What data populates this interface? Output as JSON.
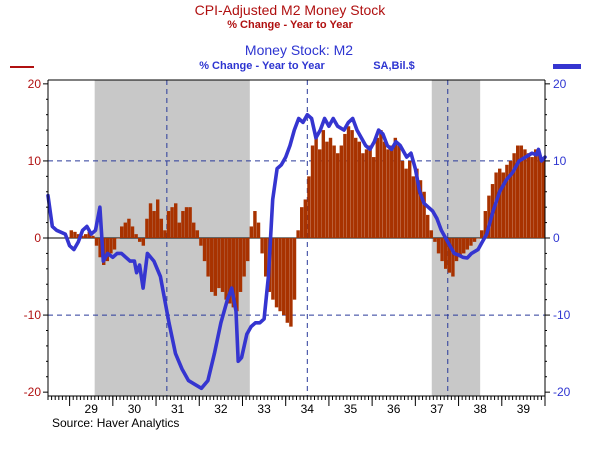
{
  "chart_data": {
    "type": "bar+line",
    "title": "CPI-Adjusted M2 Money Stock",
    "subtitle": "% Change - Year to Year",
    "title2": "Money Stock: M2",
    "subtitle2": "% Change - Year to Year",
    "units2": "SA,Bil.$",
    "source": "Source: Haver Analytics",
    "x_ticks": [
      "29",
      "30",
      "31",
      "32",
      "33",
      "34",
      "35",
      "36",
      "37",
      "38",
      "39"
    ],
    "y_left_ticks": [
      "20",
      "10",
      "0",
      "-10",
      "-20"
    ],
    "y_right_ticks": [
      "20",
      "10",
      "0",
      "-10",
      "-20"
    ],
    "ylim": [
      -20.5,
      20.5
    ],
    "xlim": [
      1928.5,
      1940.0
    ],
    "grid": "dashed blue horizontal at ±10 and dashed vertical at cycle turning points",
    "recessions": [
      [
        1929.58,
        1933.17
      ],
      [
        1937.38,
        1938.5
      ]
    ],
    "vlines": [
      1931.25,
      1934.5,
      1937.75
    ],
    "colors": {
      "bars": "#a83200",
      "line": "#3535d0",
      "recession": "#c8c8c8",
      "left_axis": "#b01010",
      "right_axis": "#2e35d1",
      "grid": "#2a3a9a"
    },
    "series": [
      {
        "name": "CPI-Adjusted M2 Money Stock",
        "kind": "bar",
        "x_start": 1929.0,
        "step": 0.0833,
        "values": [
          1.0,
          0.8,
          0.5,
          0.3,
          0.5,
          0.8,
          0.3,
          -1.0,
          -2.5,
          -3.5,
          -3.0,
          -2.0,
          -1.5,
          0.0,
          1.5,
          2.0,
          2.5,
          1.5,
          0.5,
          -0.5,
          -1.0,
          2.5,
          4.5,
          3.5,
          5.0,
          2.5,
          1.0,
          3.5,
          4.0,
          4.5,
          2.0,
          3.5,
          4.0,
          4.0,
          2.0,
          1.0,
          -1.0,
          -3.0,
          -5.0,
          -7.0,
          -7.5,
          -6.5,
          -7.0,
          -8.0,
          -8.5,
          -9.0,
          -9.5,
          -7.0,
          -5.0,
          -3.0,
          1.5,
          3.5,
          2.0,
          -2.0,
          -5.0,
          -7.0,
          -8.0,
          -9.0,
          -9.5,
          -10.0,
          -11.0,
          -11.5,
          -8.0,
          1.0,
          4.0,
          5.0,
          8.0,
          12.0,
          13.0,
          11.5,
          14.0,
          12.5,
          13.0,
          12.0,
          11.0,
          12.0,
          13.5,
          14.5,
          14.0,
          13.0,
          12.5,
          11.0,
          11.5,
          12.0,
          10.5,
          13.0,
          14.0,
          12.5,
          11.5,
          12.0,
          13.0,
          12.0,
          10.0,
          9.0,
          10.0,
          8.0,
          9.0,
          7.5,
          6.0,
          3.0,
          1.0,
          -0.5,
          -2.0,
          -3.0,
          -4.0,
          -4.5,
          -5.0,
          -3.0,
          -2.5,
          -2.0,
          -1.5,
          -1.0,
          -0.5,
          0.0,
          1.0,
          3.5,
          5.5,
          7.0,
          8.5,
          9.0,
          8.5,
          9.5,
          10.0,
          11.0,
          12.0,
          12.0,
          11.5,
          11.0,
          10.5,
          11.5,
          11.0,
          10.0
        ]
      },
      {
        "name": "Money Stock: M2",
        "kind": "line",
        "points": [
          [
            1928.5,
            5.5
          ],
          [
            1928.6,
            1.5
          ],
          [
            1928.7,
            1.0
          ],
          [
            1928.9,
            0.5
          ],
          [
            1929.0,
            -1.0
          ],
          [
            1929.1,
            -1.5
          ],
          [
            1929.2,
            -0.5
          ],
          [
            1929.3,
            1.0
          ],
          [
            1929.4,
            1.5
          ],
          [
            1929.5,
            0.5
          ],
          [
            1929.6,
            1.0
          ],
          [
            1929.7,
            4.0
          ],
          [
            1929.78,
            -3.0
          ],
          [
            1929.88,
            -2.0
          ],
          [
            1930.0,
            -2.5
          ],
          [
            1930.1,
            -2.0
          ],
          [
            1930.2,
            -2.0
          ],
          [
            1930.3,
            -2.5
          ],
          [
            1930.4,
            -3.0
          ],
          [
            1930.5,
            -3.0
          ],
          [
            1930.55,
            -4.5
          ],
          [
            1930.62,
            -3.5
          ],
          [
            1930.7,
            -6.5
          ],
          [
            1930.8,
            -2.0
          ],
          [
            1930.95,
            -3.0
          ],
          [
            1931.1,
            -5.0
          ],
          [
            1931.2,
            -8.0
          ],
          [
            1931.3,
            -11.0
          ],
          [
            1931.45,
            -15.0
          ],
          [
            1931.6,
            -17.0
          ],
          [
            1931.75,
            -18.5
          ],
          [
            1931.9,
            -19.0
          ],
          [
            1932.05,
            -19.5
          ],
          [
            1932.2,
            -18.5
          ],
          [
            1932.35,
            -15.0
          ],
          [
            1932.5,
            -11.0
          ],
          [
            1932.65,
            -8.0
          ],
          [
            1932.75,
            -6.5
          ],
          [
            1932.85,
            -9.5
          ],
          [
            1932.9,
            -16.0
          ],
          [
            1932.98,
            -15.5
          ],
          [
            1933.1,
            -12.5
          ],
          [
            1933.2,
            -11.5
          ],
          [
            1933.3,
            -11.0
          ],
          [
            1933.4,
            -11.0
          ],
          [
            1933.5,
            -10.5
          ],
          [
            1933.6,
            -5.0
          ],
          [
            1933.7,
            5.0
          ],
          [
            1933.8,
            9.0
          ],
          [
            1933.9,
            9.5
          ],
          [
            1934.0,
            10.5
          ],
          [
            1934.1,
            12.0
          ],
          [
            1934.2,
            14.0
          ],
          [
            1934.3,
            15.5
          ],
          [
            1934.4,
            15.0
          ],
          [
            1934.5,
            16.0
          ],
          [
            1934.6,
            15.5
          ],
          [
            1934.7,
            13.0
          ],
          [
            1934.8,
            14.0
          ],
          [
            1934.9,
            15.5
          ],
          [
            1935.0,
            14.5
          ],
          [
            1935.1,
            15.5
          ],
          [
            1935.2,
            14.5
          ],
          [
            1935.35,
            14.0
          ],
          [
            1935.45,
            15.0
          ],
          [
            1935.55,
            15.5
          ],
          [
            1935.65,
            14.0
          ],
          [
            1935.75,
            13.0
          ],
          [
            1935.85,
            12.0
          ],
          [
            1935.95,
            11.5
          ],
          [
            1936.05,
            12.5
          ],
          [
            1936.15,
            14.0
          ],
          [
            1936.25,
            13.5
          ],
          [
            1936.35,
            12.0
          ],
          [
            1936.45,
            11.5
          ],
          [
            1936.55,
            12.5
          ],
          [
            1936.65,
            12.0
          ],
          [
            1936.8,
            10.5
          ],
          [
            1936.9,
            11.0
          ],
          [
            1937.0,
            9.0
          ],
          [
            1937.1,
            6.0
          ],
          [
            1937.2,
            4.5
          ],
          [
            1937.3,
            4.0
          ],
          [
            1937.4,
            3.5
          ],
          [
            1937.5,
            2.5
          ],
          [
            1937.6,
            1.0
          ],
          [
            1937.7,
            0.0
          ],
          [
            1937.8,
            -1.0
          ],
          [
            1937.9,
            -2.0
          ],
          [
            1938.0,
            -2.2
          ],
          [
            1938.1,
            -2.5
          ],
          [
            1938.2,
            -2.6
          ],
          [
            1938.3,
            -2.0
          ],
          [
            1938.45,
            -1.5
          ],
          [
            1938.55,
            -0.5
          ],
          [
            1938.65,
            0.5
          ],
          [
            1938.8,
            3.5
          ],
          [
            1938.95,
            6.0
          ],
          [
            1939.1,
            7.5
          ],
          [
            1939.25,
            8.5
          ],
          [
            1939.4,
            10.0
          ],
          [
            1939.55,
            10.5
          ],
          [
            1939.7,
            11.0
          ],
          [
            1939.8,
            10.8
          ],
          [
            1939.85,
            11.5
          ],
          [
            1939.92,
            10.0
          ],
          [
            1940.0,
            10.5
          ]
        ]
      }
    ]
  }
}
